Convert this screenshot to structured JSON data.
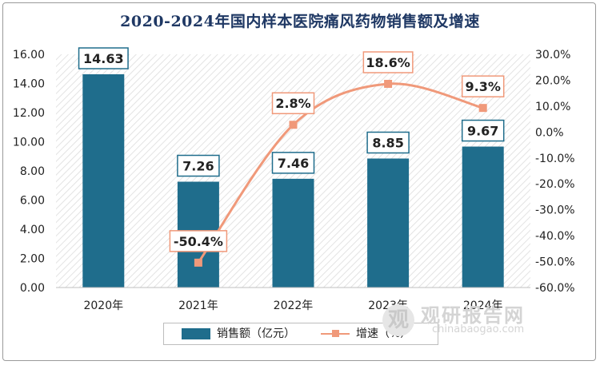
{
  "title": "2020-2024年国内样本医院痛风药物销售额及增速",
  "chart_data": {
    "type": "bar",
    "title": "2020-2024年国内样本医院痛风药物销售额及增速",
    "categories": [
      "2020年",
      "2021年",
      "2022年",
      "2023年",
      "2024年"
    ],
    "series": [
      {
        "name": "销售额（亿元）",
        "type": "bar",
        "axis": "left",
        "values": [
          14.63,
          7.26,
          7.46,
          8.85,
          9.67
        ],
        "labels": [
          "14.63",
          "7.26",
          "7.46",
          "8.85",
          "9.67"
        ]
      },
      {
        "name": "增速（%）",
        "type": "line",
        "axis": "right",
        "values": [
          null,
          -50.4,
          2.8,
          18.6,
          9.3
        ],
        "labels": [
          "",
          "-50.4%",
          "2.8%",
          "18.6%",
          "9.3%"
        ]
      }
    ],
    "left_axis": {
      "ylim": [
        0,
        16
      ],
      "ticks": [
        "0.00",
        "2.00",
        "4.00",
        "6.00",
        "8.00",
        "10.00",
        "12.00",
        "14.00",
        "16.00"
      ]
    },
    "right_axis": {
      "ylim": [
        -60,
        30
      ],
      "ticks": [
        "-60.0%",
        "-50.0%",
        "-40.0%",
        "-30.0%",
        "-20.0%",
        "-10.0%",
        "0.0%",
        "10.0%",
        "20.0%",
        "30.0%"
      ]
    },
    "legend_position": "bottom",
    "grid": false
  },
  "colors": {
    "bar": "#1f6d8c",
    "line": "#f0997a",
    "title": "#1f3864",
    "label_border_bar": "#1f6d8c",
    "label_border_line": "#f0997a"
  },
  "watermark": {
    "logo_glyph": "观",
    "text_cn": "观研报告网",
    "text_en": "chinabaogao.com"
  }
}
